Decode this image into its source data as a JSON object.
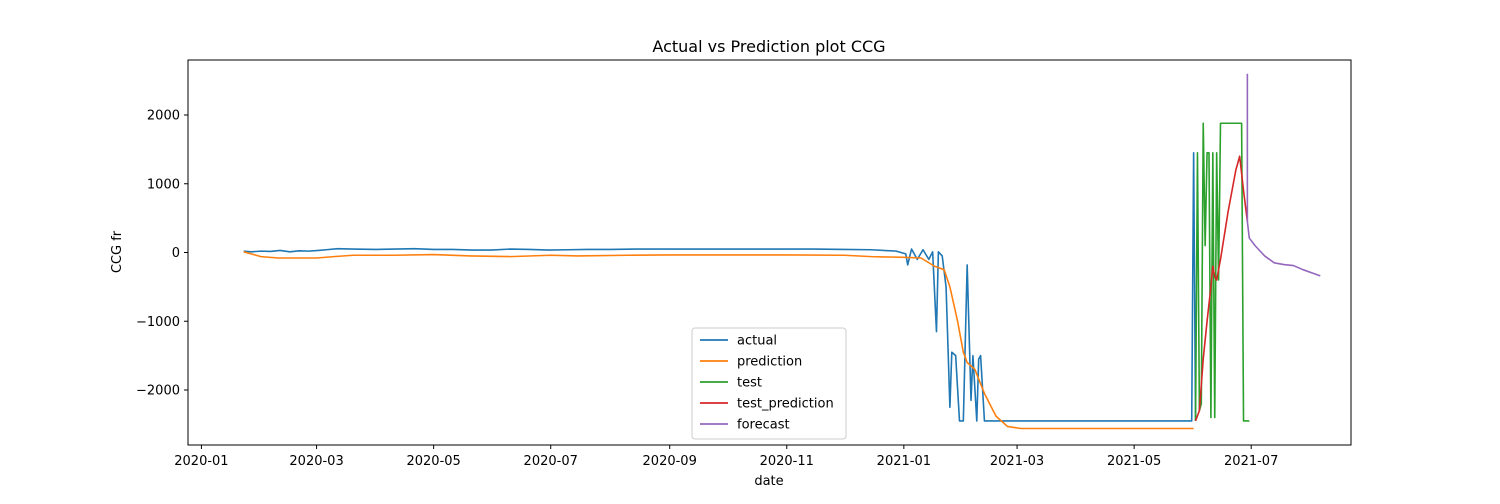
{
  "chart_data": {
    "type": "line",
    "title": "Actual vs Prediction plot CCG",
    "xlabel": "date",
    "ylabel": "CCG fr",
    "xlim": [
      "2019-12-25",
      "2021-08-22"
    ],
    "ylim": [
      -2800,
      2800
    ],
    "xticks": [
      "2020-01",
      "2020-03",
      "2020-05",
      "2020-07",
      "2020-09",
      "2020-11",
      "2021-01",
      "2021-03",
      "2021-05",
      "2021-07"
    ],
    "yticks": [
      -2000,
      -1000,
      0,
      1000,
      2000
    ],
    "ytick_labels": [
      "−2000",
      "−1000",
      "0",
      "1000",
      "2000"
    ],
    "grid": false,
    "legend": {
      "placement": "lower center"
    },
    "series": [
      {
        "name": "actual",
        "color": "#1f77b4",
        "points": [
          [
            "2020-01-23",
            20
          ],
          [
            "2020-01-27",
            10
          ],
          [
            "2020-02-01",
            20
          ],
          [
            "2020-02-06",
            15
          ],
          [
            "2020-02-11",
            30
          ],
          [
            "2020-02-16",
            10
          ],
          [
            "2020-02-21",
            25
          ],
          [
            "2020-02-26",
            20
          ],
          [
            "2020-03-02",
            30
          ],
          [
            "2020-03-06",
            40
          ],
          [
            "2020-03-12",
            55
          ],
          [
            "2020-03-20",
            50
          ],
          [
            "2020-04-01",
            45
          ],
          [
            "2020-04-11",
            50
          ],
          [
            "2020-04-21",
            55
          ],
          [
            "2020-05-01",
            45
          ],
          [
            "2020-05-11",
            45
          ],
          [
            "2020-05-21",
            35
          ],
          [
            "2020-05-31",
            35
          ],
          [
            "2020-06-10",
            50
          ],
          [
            "2020-06-20",
            45
          ],
          [
            "2020-06-30",
            35
          ],
          [
            "2020-07-10",
            40
          ],
          [
            "2020-07-20",
            45
          ],
          [
            "2020-08-01",
            45
          ],
          [
            "2020-08-15",
            50
          ],
          [
            "2020-09-01",
            50
          ],
          [
            "2020-09-15",
            50
          ],
          [
            "2020-10-01",
            50
          ],
          [
            "2020-10-15",
            50
          ],
          [
            "2020-11-01",
            50
          ],
          [
            "2020-11-15",
            50
          ],
          [
            "2020-12-01",
            45
          ],
          [
            "2020-12-15",
            40
          ],
          [
            "2020-12-28",
            20
          ],
          [
            "2021-01-02",
            -20
          ],
          [
            "2021-01-03",
            -180
          ],
          [
            "2021-01-05",
            50
          ],
          [
            "2021-01-08",
            -100
          ],
          [
            "2021-01-11",
            40
          ],
          [
            "2021-01-14",
            -100
          ],
          [
            "2021-01-16",
            10
          ],
          [
            "2021-01-18",
            -1150
          ],
          [
            "2021-01-19",
            10
          ],
          [
            "2021-01-21",
            -50
          ],
          [
            "2021-01-23",
            -500
          ],
          [
            "2021-01-25",
            -2250
          ],
          [
            "2021-01-26",
            -1450
          ],
          [
            "2021-01-28",
            -1500
          ],
          [
            "2021-01-30",
            -2450
          ],
          [
            "2021-02-01",
            -2450
          ],
          [
            "2021-02-03",
            -180
          ],
          [
            "2021-02-05",
            -2150
          ],
          [
            "2021-02-06",
            -1500
          ],
          [
            "2021-02-08",
            -2450
          ],
          [
            "2021-02-09",
            -1550
          ],
          [
            "2021-02-10",
            -1500
          ],
          [
            "2021-02-12",
            -2450
          ],
          [
            "2021-03-01",
            -2450
          ],
          [
            "2021-04-01",
            -2450
          ],
          [
            "2021-05-01",
            -2450
          ],
          [
            "2021-05-31",
            -2450
          ],
          [
            "2021-06-01",
            1450
          ],
          [
            "2021-06-02",
            -2450
          ]
        ]
      },
      {
        "name": "prediction",
        "color": "#ff7f0e",
        "points": [
          [
            "2020-01-23",
            10
          ],
          [
            "2020-02-01",
            -60
          ],
          [
            "2020-02-10",
            -80
          ],
          [
            "2020-03-01",
            -80
          ],
          [
            "2020-03-10",
            -60
          ],
          [
            "2020-03-20",
            -40
          ],
          [
            "2020-04-10",
            -40
          ],
          [
            "2020-05-01",
            -30
          ],
          [
            "2020-05-20",
            -50
          ],
          [
            "2020-06-10",
            -60
          ],
          [
            "2020-07-01",
            -40
          ],
          [
            "2020-07-15",
            -50
          ],
          [
            "2020-08-10",
            -40
          ],
          [
            "2020-09-01",
            -35
          ],
          [
            "2020-10-01",
            -35
          ],
          [
            "2020-11-01",
            -35
          ],
          [
            "2020-12-01",
            -40
          ],
          [
            "2020-12-15",
            -60
          ],
          [
            "2021-01-01",
            -70
          ],
          [
            "2021-01-10",
            -80
          ],
          [
            "2021-01-17",
            -200
          ],
          [
            "2021-01-22",
            -250
          ],
          [
            "2021-01-25",
            -500
          ],
          [
            "2021-01-29",
            -1000
          ],
          [
            "2021-02-01",
            -1450
          ],
          [
            "2021-02-03",
            -1600
          ],
          [
            "2021-02-07",
            -1700
          ],
          [
            "2021-02-12",
            -2050
          ],
          [
            "2021-02-18",
            -2380
          ],
          [
            "2021-02-24",
            -2530
          ],
          [
            "2021-03-03",
            -2560
          ],
          [
            "2021-04-01",
            -2560
          ],
          [
            "2021-05-01",
            -2560
          ],
          [
            "2021-06-01",
            -2560
          ]
        ]
      },
      {
        "name": "test",
        "color": "#2ca02c",
        "points": [
          [
            "2021-06-02",
            -2450
          ],
          [
            "2021-06-03",
            1450
          ],
          [
            "2021-06-04",
            -2300
          ],
          [
            "2021-06-05",
            -2200
          ],
          [
            "2021-06-06",
            1880
          ],
          [
            "2021-06-07",
            100
          ],
          [
            "2021-06-08",
            1450
          ],
          [
            "2021-06-09",
            1450
          ],
          [
            "2021-06-10",
            -2400
          ],
          [
            "2021-06-11",
            1450
          ],
          [
            "2021-06-12",
            -2400
          ],
          [
            "2021-06-13",
            1450
          ],
          [
            "2021-06-14",
            -400
          ],
          [
            "2021-06-15",
            1880
          ],
          [
            "2021-06-18",
            1880
          ],
          [
            "2021-06-26",
            1880
          ],
          [
            "2021-06-27",
            -2450
          ],
          [
            "2021-06-29",
            -2450
          ],
          [
            "2021-06-30",
            -2450
          ]
        ]
      },
      {
        "name": "test_prediction",
        "color": "#d62728",
        "points": [
          [
            "2021-06-02",
            -2450
          ],
          [
            "2021-06-04",
            -2300
          ],
          [
            "2021-06-06",
            -1550
          ],
          [
            "2021-06-08",
            -1000
          ],
          [
            "2021-06-10",
            -500
          ],
          [
            "2021-06-11",
            -200
          ],
          [
            "2021-06-12",
            -350
          ],
          [
            "2021-06-13",
            -400
          ],
          [
            "2021-06-15",
            -100
          ],
          [
            "2021-06-19",
            600
          ],
          [
            "2021-06-23",
            1200
          ],
          [
            "2021-06-25",
            1400
          ],
          [
            "2021-06-27",
            900
          ],
          [
            "2021-06-29",
            450
          ]
        ]
      },
      {
        "name": "forecast",
        "color": "#9467bd",
        "points": [
          [
            "2021-06-29",
            2600
          ],
          [
            "2021-06-29",
            450
          ],
          [
            "2021-06-30",
            210
          ],
          [
            "2021-07-03",
            100
          ],
          [
            "2021-07-08",
            -50
          ],
          [
            "2021-07-13",
            -150
          ],
          [
            "2021-07-18",
            -175
          ],
          [
            "2021-07-23",
            -190
          ],
          [
            "2021-07-28",
            -250
          ],
          [
            "2021-08-02",
            -300
          ],
          [
            "2021-08-06",
            -340
          ]
        ]
      }
    ]
  }
}
